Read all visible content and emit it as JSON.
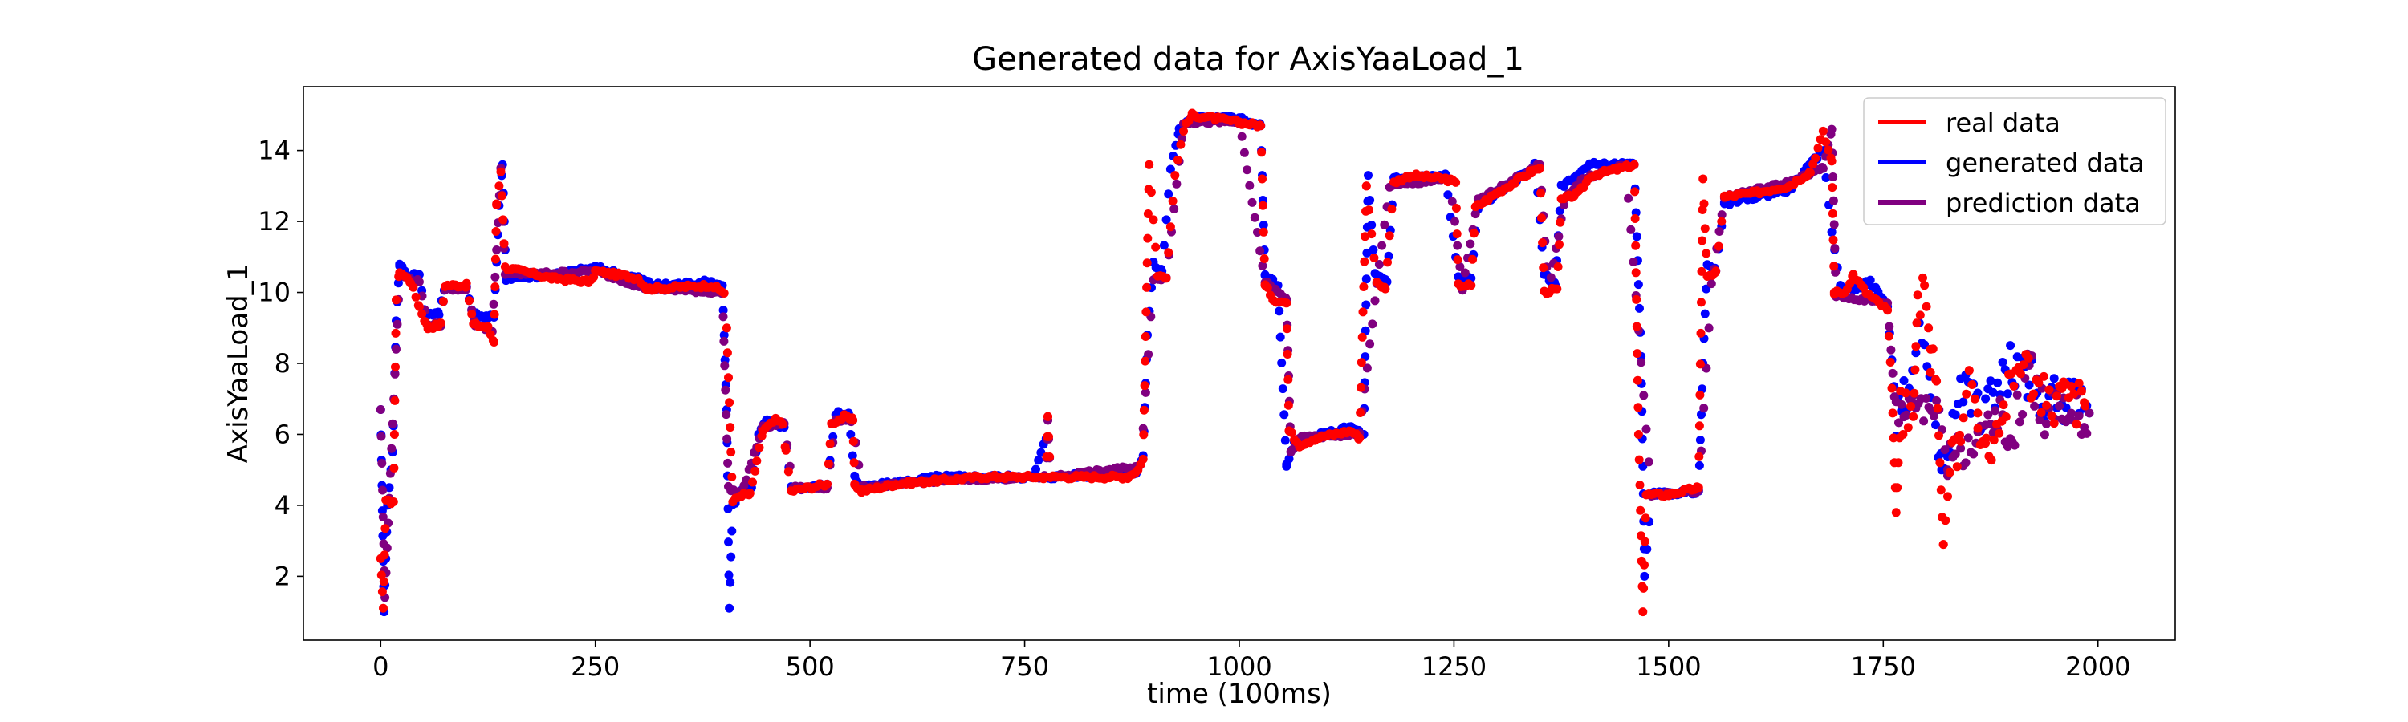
{
  "chart_data": {
    "type": "scatter",
    "title": "Generated data for AxisYaaLoad_1",
    "xlabel": "time (100ms)",
    "ylabel": "AxisYaaLoad_1",
    "xlim": [
      -90,
      2090
    ],
    "ylim": [
      0.2,
      15.8
    ],
    "xticks": [
      0,
      250,
      500,
      750,
      1000,
      1250,
      1500,
      1750,
      2000
    ],
    "yticks": [
      2,
      4,
      6,
      8,
      10,
      12,
      14
    ],
    "grid": false,
    "legend_position": "top-right",
    "series": [
      {
        "name": "real data",
        "color": "#ff0000",
        "keypoints": [
          [
            0,
            2.5
          ],
          [
            3,
            1.1
          ],
          [
            6,
            4.1
          ],
          [
            15,
            4.1
          ],
          [
            18,
            9.8
          ],
          [
            22,
            10.6
          ],
          [
            35,
            10.3
          ],
          [
            45,
            9.6
          ],
          [
            55,
            9.0
          ],
          [
            70,
            9.1
          ],
          [
            75,
            10.2
          ],
          [
            100,
            10.2
          ],
          [
            108,
            9.1
          ],
          [
            125,
            9.0
          ],
          [
            132,
            8.6
          ],
          [
            135,
            12.5
          ],
          [
            140,
            13.4
          ],
          [
            145,
            10.7
          ],
          [
            200,
            10.4
          ],
          [
            245,
            10.3
          ],
          [
            250,
            10.6
          ],
          [
            300,
            10.4
          ],
          [
            310,
            10.1
          ],
          [
            385,
            10.2
          ],
          [
            400,
            10.0
          ],
          [
            403,
            9.0
          ],
          [
            410,
            4.1
          ],
          [
            420,
            4.3
          ],
          [
            430,
            4.3
          ],
          [
            438,
            5.2
          ],
          [
            445,
            6.1
          ],
          [
            460,
            6.4
          ],
          [
            468,
            6.3
          ],
          [
            472,
            5.5
          ],
          [
            478,
            4.4
          ],
          [
            520,
            4.6
          ],
          [
            525,
            6.3
          ],
          [
            540,
            6.5
          ],
          [
            550,
            6.4
          ],
          [
            552,
            4.6
          ],
          [
            560,
            4.4
          ],
          [
            600,
            4.6
          ],
          [
            650,
            4.7
          ],
          [
            700,
            4.8
          ],
          [
            775,
            4.8
          ],
          [
            777,
            6.5
          ],
          [
            780,
            4.8
          ],
          [
            870,
            4.8
          ],
          [
            882,
            5.0
          ],
          [
            888,
            5.3
          ],
          [
            895,
            13.6
          ],
          [
            905,
            10.5
          ],
          [
            915,
            10.4
          ],
          [
            925,
            13.3
          ],
          [
            935,
            14.6
          ],
          [
            945,
            15.0
          ],
          [
            1000,
            14.8
          ],
          [
            1025,
            14.7
          ],
          [
            1030,
            10.2
          ],
          [
            1040,
            9.8
          ],
          [
            1055,
            9.7
          ],
          [
            1058,
            6.1
          ],
          [
            1070,
            5.7
          ],
          [
            1090,
            5.9
          ],
          [
            1110,
            6.0
          ],
          [
            1130,
            6.1
          ],
          [
            1140,
            5.9
          ],
          [
            1148,
            13.0
          ],
          [
            1160,
            10.3
          ],
          [
            1170,
            10.1
          ],
          [
            1180,
            13.1
          ],
          [
            1200,
            13.3
          ],
          [
            1240,
            13.2
          ],
          [
            1252,
            13.1
          ],
          [
            1255,
            10.2
          ],
          [
            1270,
            10.2
          ],
          [
            1275,
            12.4
          ],
          [
            1300,
            12.8
          ],
          [
            1340,
            13.4
          ],
          [
            1350,
            13.5
          ],
          [
            1355,
            10.0
          ],
          [
            1370,
            10.1
          ],
          [
            1375,
            12.6
          ],
          [
            1395,
            12.8
          ],
          [
            1410,
            13.3
          ],
          [
            1445,
            13.5
          ],
          [
            1460,
            13.6
          ],
          [
            1465,
            6.0
          ],
          [
            1470,
            1.0
          ],
          [
            1474,
            4.3
          ],
          [
            1500,
            4.3
          ],
          [
            1535,
            4.5
          ],
          [
            1540,
            13.2
          ],
          [
            1545,
            10.4
          ],
          [
            1555,
            10.6
          ],
          [
            1565,
            12.7
          ],
          [
            1600,
            12.8
          ],
          [
            1640,
            13.0
          ],
          [
            1665,
            13.4
          ],
          [
            1680,
            14.5
          ],
          [
            1690,
            13.7
          ],
          [
            1693,
            10.0
          ],
          [
            1705,
            10.0
          ],
          [
            1715,
            10.5
          ],
          [
            1730,
            10.0
          ],
          [
            1755,
            9.5
          ],
          [
            1760,
            7.3
          ],
          [
            1765,
            3.8
          ],
          [
            1770,
            6.6
          ],
          [
            1785,
            6.5
          ],
          [
            1790,
            9.8
          ],
          [
            1798,
            10.2
          ],
          [
            1805,
            8.4
          ],
          [
            1812,
            7.5
          ],
          [
            1820,
            2.9
          ],
          [
            1830,
            5.6
          ],
          [
            1840,
            5.8
          ],
          [
            1850,
            7.8
          ],
          [
            1860,
            6.6
          ],
          [
            1870,
            5.6
          ],
          [
            1890,
            6.7
          ],
          [
            1910,
            8.2
          ],
          [
            1925,
            7.5
          ],
          [
            1940,
            6.8
          ],
          [
            1960,
            7.1
          ],
          [
            1985,
            6.8
          ]
        ]
      },
      {
        "name": "generated data",
        "color": "#0000ff",
        "keypoints": [
          [
            0,
            6.7
          ],
          [
            4,
            1.0
          ],
          [
            8,
            4.0
          ],
          [
            14,
            5.5
          ],
          [
            18,
            9.2
          ],
          [
            22,
            10.8
          ],
          [
            30,
            10.5
          ],
          [
            45,
            10.5
          ],
          [
            52,
            9.4
          ],
          [
            68,
            9.4
          ],
          [
            75,
            10.2
          ],
          [
            100,
            10.1
          ],
          [
            108,
            9.4
          ],
          [
            125,
            9.3
          ],
          [
            132,
            9.3
          ],
          [
            138,
            12.4
          ],
          [
            142,
            13.6
          ],
          [
            146,
            10.4
          ],
          [
            200,
            10.5
          ],
          [
            250,
            10.7
          ],
          [
            300,
            10.4
          ],
          [
            320,
            10.2
          ],
          [
            385,
            10.3
          ],
          [
            398,
            10.2
          ],
          [
            403,
            6.7
          ],
          [
            406,
            1.1
          ],
          [
            410,
            4.0
          ],
          [
            420,
            4.4
          ],
          [
            432,
            4.5
          ],
          [
            440,
            6.0
          ],
          [
            450,
            6.4
          ],
          [
            470,
            6.2
          ],
          [
            478,
            4.5
          ],
          [
            500,
            4.5
          ],
          [
            520,
            4.6
          ],
          [
            530,
            6.6
          ],
          [
            545,
            6.6
          ],
          [
            552,
            4.8
          ],
          [
            560,
            4.5
          ],
          [
            650,
            4.8
          ],
          [
            760,
            4.8
          ],
          [
            775,
            5.9
          ],
          [
            778,
            4.8
          ],
          [
            880,
            4.9
          ],
          [
            888,
            5.4
          ],
          [
            893,
            8.8
          ],
          [
            900,
            10.8
          ],
          [
            910,
            10.6
          ],
          [
            920,
            13.5
          ],
          [
            930,
            14.6
          ],
          [
            950,
            15.0
          ],
          [
            1000,
            14.9
          ],
          [
            1025,
            14.7
          ],
          [
            1030,
            10.5
          ],
          [
            1045,
            10.2
          ],
          [
            1055,
            5.1
          ],
          [
            1065,
            5.8
          ],
          [
            1130,
            6.2
          ],
          [
            1145,
            6.0
          ],
          [
            1150,
            13.3
          ],
          [
            1158,
            10.5
          ],
          [
            1172,
            10.3
          ],
          [
            1180,
            13.2
          ],
          [
            1240,
            13.3
          ],
          [
            1255,
            10.4
          ],
          [
            1270,
            10.4
          ],
          [
            1278,
            12.4
          ],
          [
            1345,
            13.6
          ],
          [
            1355,
            10.5
          ],
          [
            1368,
            10.2
          ],
          [
            1375,
            13.0
          ],
          [
            1410,
            13.6
          ],
          [
            1460,
            13.6
          ],
          [
            1468,
            8.2
          ],
          [
            1472,
            2.0
          ],
          [
            1480,
            4.3
          ],
          [
            1535,
            4.4
          ],
          [
            1540,
            8.0
          ],
          [
            1545,
            10.8
          ],
          [
            1555,
            10.6
          ],
          [
            1565,
            12.5
          ],
          [
            1640,
            12.9
          ],
          [
            1680,
            14.0
          ],
          [
            1690,
            11.7
          ],
          [
            1700,
            10.2
          ],
          [
            1715,
            10.1
          ],
          [
            1735,
            10.3
          ],
          [
            1755,
            9.6
          ],
          [
            1765,
            6.6
          ],
          [
            1780,
            7.3
          ],
          [
            1792,
            8.8
          ],
          [
            1805,
            7.0
          ],
          [
            1818,
            5.2
          ],
          [
            1825,
            5.4
          ],
          [
            1840,
            7.8
          ],
          [
            1860,
            6.7
          ],
          [
            1880,
            7.0
          ],
          [
            1900,
            8.0
          ],
          [
            1920,
            7.5
          ],
          [
            1940,
            6.9
          ],
          [
            1960,
            7.0
          ],
          [
            1990,
            6.6
          ]
        ]
      },
      {
        "name": "prediction data",
        "color": "#800080",
        "keypoints": [
          [
            0,
            6.7
          ],
          [
            5,
            1.4
          ],
          [
            10,
            4.2
          ],
          [
            22,
            10.5
          ],
          [
            45,
            10.3
          ],
          [
            55,
            9.1
          ],
          [
            70,
            9.1
          ],
          [
            75,
            10.1
          ],
          [
            100,
            10.1
          ],
          [
            110,
            9.1
          ],
          [
            130,
            8.9
          ],
          [
            140,
            13.5
          ],
          [
            145,
            10.5
          ],
          [
            250,
            10.6
          ],
          [
            310,
            10.1
          ],
          [
            398,
            10.0
          ],
          [
            405,
            4.5
          ],
          [
            420,
            4.3
          ],
          [
            445,
            6.2
          ],
          [
            470,
            6.3
          ],
          [
            480,
            4.5
          ],
          [
            520,
            4.5
          ],
          [
            530,
            6.4
          ],
          [
            550,
            6.4
          ],
          [
            560,
            4.5
          ],
          [
            650,
            4.7
          ],
          [
            775,
            4.8
          ],
          [
            777,
            6.4
          ],
          [
            780,
            4.8
          ],
          [
            885,
            5.1
          ],
          [
            900,
            10.4
          ],
          [
            915,
            10.4
          ],
          [
            935,
            14.8
          ],
          [
            1000,
            14.8
          ],
          [
            1030,
            10.3
          ],
          [
            1055,
            9.8
          ],
          [
            1060,
            5.5
          ],
          [
            1070,
            5.9
          ],
          [
            1140,
            6.0
          ],
          [
            1160,
            10.2
          ],
          [
            1175,
            13.0
          ],
          [
            1245,
            13.2
          ],
          [
            1260,
            10.1
          ],
          [
            1278,
            12.6
          ],
          [
            1350,
            13.6
          ],
          [
            1360,
            10.0
          ],
          [
            1380,
            12.7
          ],
          [
            1400,
            13.2
          ],
          [
            1450,
            13.6
          ],
          [
            1480,
            4.3
          ],
          [
            1535,
            4.4
          ],
          [
            1550,
            10.2
          ],
          [
            1565,
            12.7
          ],
          [
            1640,
            13.1
          ],
          [
            1680,
            13.5
          ],
          [
            1690,
            14.6
          ],
          [
            1695,
            9.9
          ],
          [
            1755,
            9.7
          ],
          [
            1765,
            6.4
          ],
          [
            1785,
            7.0
          ],
          [
            1800,
            6.9
          ],
          [
            1815,
            6.7
          ],
          [
            1825,
            5.0
          ],
          [
            1840,
            5.7
          ],
          [
            1860,
            5.7
          ],
          [
            1880,
            6.4
          ],
          [
            1900,
            6.0
          ],
          [
            1920,
            7.8
          ],
          [
            1940,
            6.4
          ],
          [
            1960,
            7.0
          ],
          [
            1990,
            6.6
          ]
        ]
      }
    ]
  }
}
